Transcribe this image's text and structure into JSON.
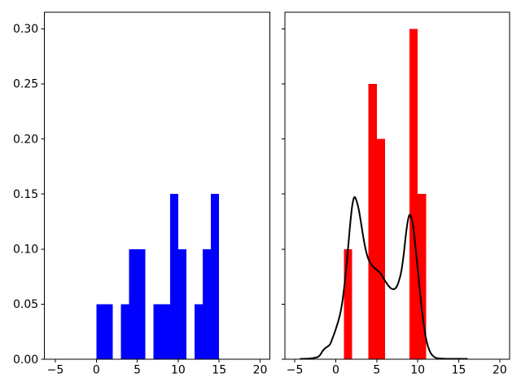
{
  "figure": {
    "background_color": "#ffffff",
    "text_color": "#000000",
    "spine_color": "#000000"
  },
  "chart_data": [
    {
      "type": "bar",
      "subplot": "left",
      "title": "",
      "xlabel": "",
      "ylabel": "",
      "grid": false,
      "legend": null,
      "bar_color": "#0000ff",
      "xlim": [
        -6.32,
        21.21
      ],
      "ylim": [
        0,
        0.315
      ],
      "xticks": [
        -5,
        0,
        5,
        10,
        15,
        20
      ],
      "xtick_labels": [
        "−5",
        "0",
        "5",
        "10",
        "15",
        "20"
      ],
      "yticks": [
        0,
        0.05,
        0.1,
        0.15,
        0.2,
        0.25,
        0.3
      ],
      "ytick_labels": [
        "0.00",
        "0.05",
        "0.10",
        "0.15",
        "0.20",
        "0.25",
        "0.30"
      ],
      "bars": [
        {
          "x0": 0,
          "x1": 1,
          "height": 0.05
        },
        {
          "x0": 1,
          "x1": 2,
          "height": 0.05
        },
        {
          "x0": 3,
          "x1": 4,
          "height": 0.05
        },
        {
          "x0": 4,
          "x1": 5,
          "height": 0.1
        },
        {
          "x0": 5,
          "x1": 6,
          "height": 0.1
        },
        {
          "x0": 7,
          "x1": 8,
          "height": 0.05
        },
        {
          "x0": 8,
          "x1": 9,
          "height": 0.05
        },
        {
          "x0": 9,
          "x1": 10,
          "height": 0.15
        },
        {
          "x0": 10,
          "x1": 11,
          "height": 0.1
        },
        {
          "x0": 12,
          "x1": 13,
          "height": 0.05
        },
        {
          "x0": 13,
          "x1": 14,
          "height": 0.1
        },
        {
          "x0": 14,
          "x1": 15,
          "height": 0.15
        }
      ],
      "curve": null
    },
    {
      "type": "bar+line",
      "subplot": "right",
      "title": "",
      "xlabel": "",
      "ylabel": "",
      "grid": false,
      "legend": null,
      "bar_color": "#ff0000",
      "xlim": [
        -6.2,
        21.2
      ],
      "ylim": [
        0,
        0.315
      ],
      "xticks": [
        -5,
        0,
        5,
        10,
        15,
        20
      ],
      "xtick_labels": [
        "−5",
        "0",
        "5",
        "10",
        "15",
        "20"
      ],
      "yticks": [
        0,
        0.05,
        0.1,
        0.15,
        0.2,
        0.25,
        0.3
      ],
      "ytick_labels": [],
      "bars": [
        {
          "x0": 1,
          "x1": 2,
          "height": 0.1
        },
        {
          "x0": 4,
          "x1": 5,
          "height": 0.25
        },
        {
          "x0": 5,
          "x1": 6,
          "height": 0.2
        },
        {
          "x0": 9,
          "x1": 10,
          "height": 0.3
        },
        {
          "x0": 10,
          "x1": 11,
          "height": 0.15
        }
      ],
      "curve": {
        "name": "kde-density-curve",
        "color": "#000000",
        "line_width": 2,
        "x": [
          -4.3,
          -3.6,
          -3.0,
          -2.6,
          -2.2,
          -1.9,
          -1.6,
          -1.3,
          -1.0,
          -0.7,
          -0.4,
          -0.1,
          0.2,
          0.5,
          0.8,
          1.1,
          1.4,
          1.7,
          2.0,
          2.25,
          2.5,
          2.8,
          3.1,
          3.4,
          3.7,
          4.0,
          4.35,
          4.7,
          5.1,
          5.5,
          5.9,
          6.3,
          6.7,
          7.05,
          7.4,
          7.7,
          8.0,
          8.3,
          8.6,
          8.9,
          9.15,
          9.45,
          9.75,
          10.05,
          10.35,
          10.65,
          10.95,
          11.25,
          11.55,
          11.85,
          12.2,
          12.6,
          13.2,
          14.0,
          15.0,
          16.0
        ],
        "y": [
          0.0004,
          0.0005,
          0.0008,
          0.0013,
          0.002,
          0.004,
          0.0075,
          0.01,
          0.0115,
          0.0135,
          0.019,
          0.025,
          0.032,
          0.04,
          0.052,
          0.07,
          0.092,
          0.118,
          0.139,
          0.147,
          0.1445,
          0.136,
          0.123,
          0.109,
          0.098,
          0.0905,
          0.086,
          0.083,
          0.0805,
          0.0775,
          0.0725,
          0.068,
          0.0645,
          0.0635,
          0.0655,
          0.071,
          0.08,
          0.096,
          0.116,
          0.1295,
          0.13,
          0.12,
          0.1,
          0.078,
          0.055,
          0.036,
          0.021,
          0.0115,
          0.006,
          0.003,
          0.0013,
          0.0007,
          0.0005,
          0.0004,
          0.0004,
          0.0004
        ]
      }
    }
  ]
}
